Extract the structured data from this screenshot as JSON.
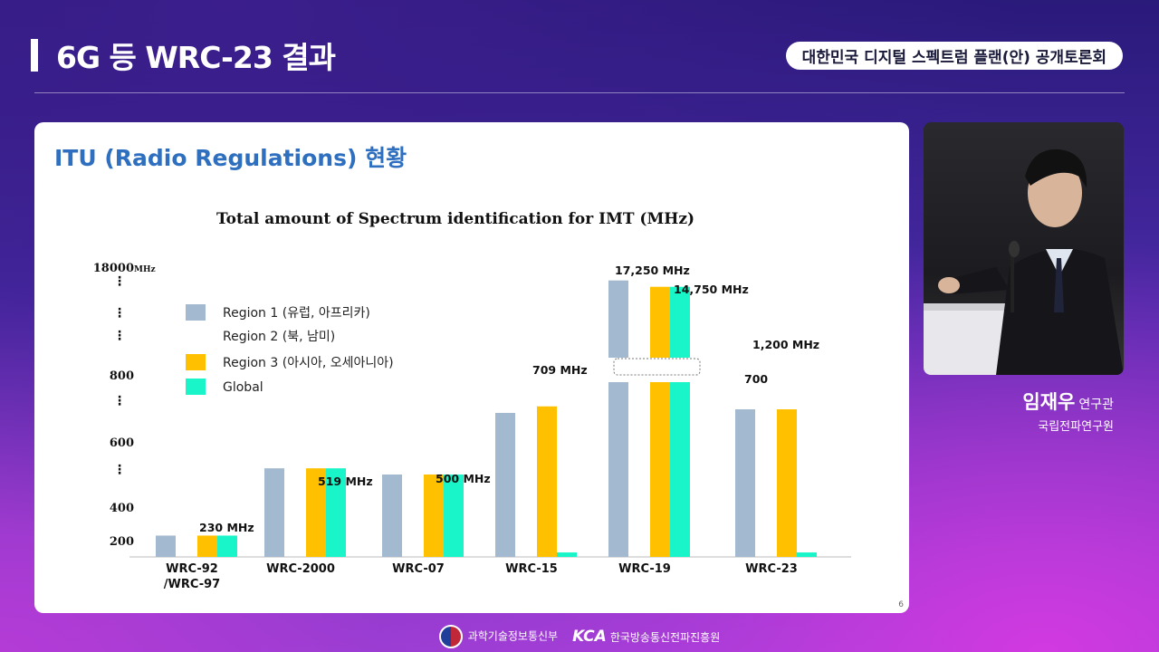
{
  "header": {
    "title": "6G 등 WRC-23 결과",
    "event": "대한민국 디지털 스펙트럼 플랜(안) 공개토론회"
  },
  "slide": {
    "section_title": "ITU (Radio Regulations) 현황",
    "page_number": "6"
  },
  "speaker": {
    "name": "임재우",
    "role": "연구관",
    "org": "국립전파연구원"
  },
  "footer": {
    "org1": "과학기술정보통신부",
    "org2_logo": "KCA",
    "org2": "한국방송통신전파진흥원"
  },
  "chart_data": {
    "type": "bar",
    "title": "Total amount of Spectrum identification for IMT (MHz)",
    "y_unit": "MHz",
    "y_ticks": [
      "200",
      "400",
      "600",
      "800",
      "18000"
    ],
    "categories": [
      "WRC-92\n/WRC-97",
      "WRC-2000",
      "WRC-07",
      "WRC-15",
      "WRC-19",
      "WRC-23"
    ],
    "series": [
      {
        "name": "Region 1 (유럽, 아프리카)",
        "color": "#a2b9cf",
        "values": [
          230,
          519,
          500,
          689,
          17250,
          700
        ]
      },
      {
        "name": "Region 2 (북, 남미)",
        "color": "#ffffff",
        "values": [
          null,
          null,
          null,
          null,
          null,
          null
        ]
      },
      {
        "name": "Region 3 (아시아, 오세아니아)",
        "color": "#ffc000",
        "values": [
          230,
          519,
          500,
          709,
          14750,
          700
        ]
      },
      {
        "name": "Global",
        "color": "#19f5c8",
        "values": [
          230,
          519,
          500,
          55,
          14750,
          55
        ]
      }
    ],
    "annotations": [
      {
        "text": "230 MHz",
        "category": "WRC-92\n/WRC-97"
      },
      {
        "text": "519 MHz",
        "category": "WRC-2000"
      },
      {
        "text": "500 MHz",
        "category": "WRC-07"
      },
      {
        "text": "709 MHz",
        "category": "WRC-15"
      },
      {
        "text": "17,250 MHz",
        "category": "WRC-19"
      },
      {
        "text": "14,750 MHz",
        "category": "WRC-19"
      },
      {
        "text": "700",
        "category": "WRC-23"
      },
      {
        "text": "1,200 MHz",
        "category": "WRC-23"
      }
    ],
    "axis_break": true
  }
}
